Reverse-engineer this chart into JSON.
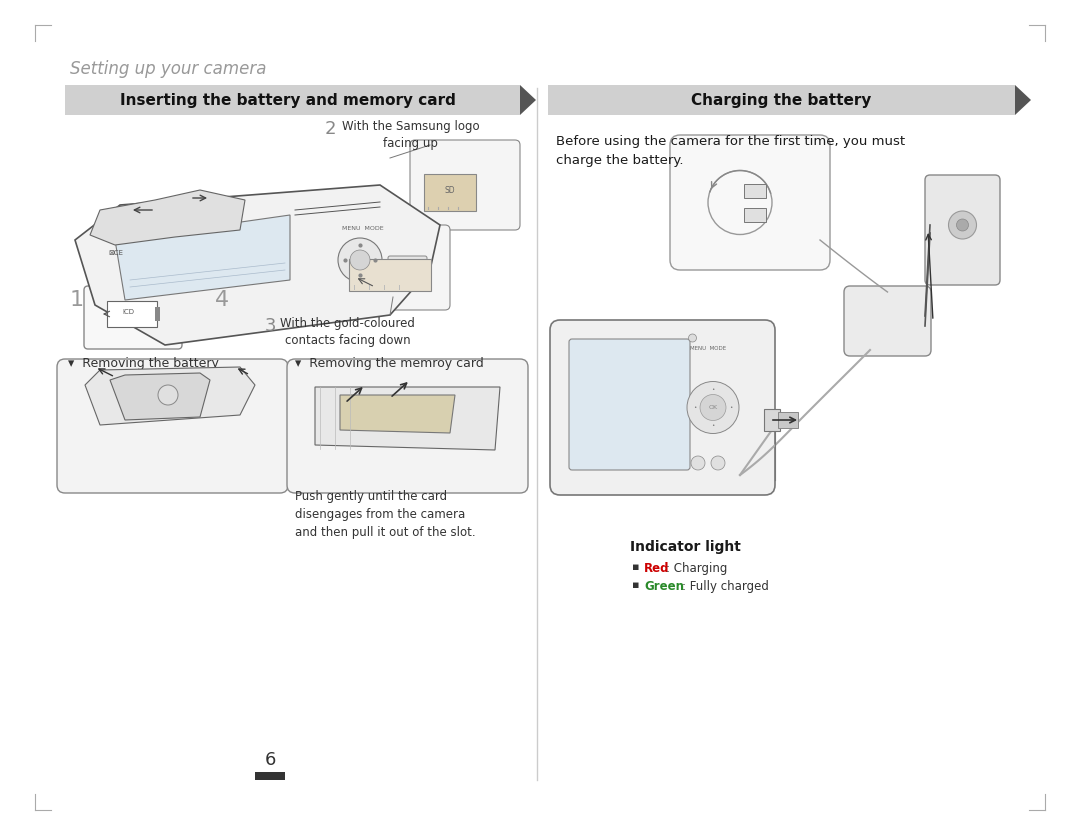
{
  "bg_color": "#ffffff",
  "section_title": "Setting up your camera",
  "section_title_color": "#999999",
  "section_title_fontsize": 12,
  "left_header": "Inserting the battery and memory card",
  "right_header": "Charging the battery",
  "header_bg": "#d0d0d0",
  "header_fontsize": 11,
  "step2_text": "With the Samsung logo\nfacing up",
  "step3_text": "With the gold-coloured\ncontacts facing down",
  "remove_battery_label": "▾  Removing the battery",
  "remove_card_label": "▾  Removing the memroy card",
  "push_text": "Push gently until the card\ndisengages from the camera\nand then pull it out of the slot.",
  "charge_desc": "Before using the camera for the first time, you must\ncharge the battery.",
  "indicator_title": "Indicator light",
  "indicator_red_bold": "Red",
  "indicator_red_rest": ": Charging",
  "indicator_green_bold": "Green",
  "indicator_green_rest": ": Fully charged",
  "page_number": "6",
  "tick_color": "#aaaaaa",
  "divider_color": "#cccccc",
  "body_color": "#1a1a1a",
  "small_fontsize": 8.5,
  "body_fontsize": 9.5,
  "label_fontsize": 9
}
